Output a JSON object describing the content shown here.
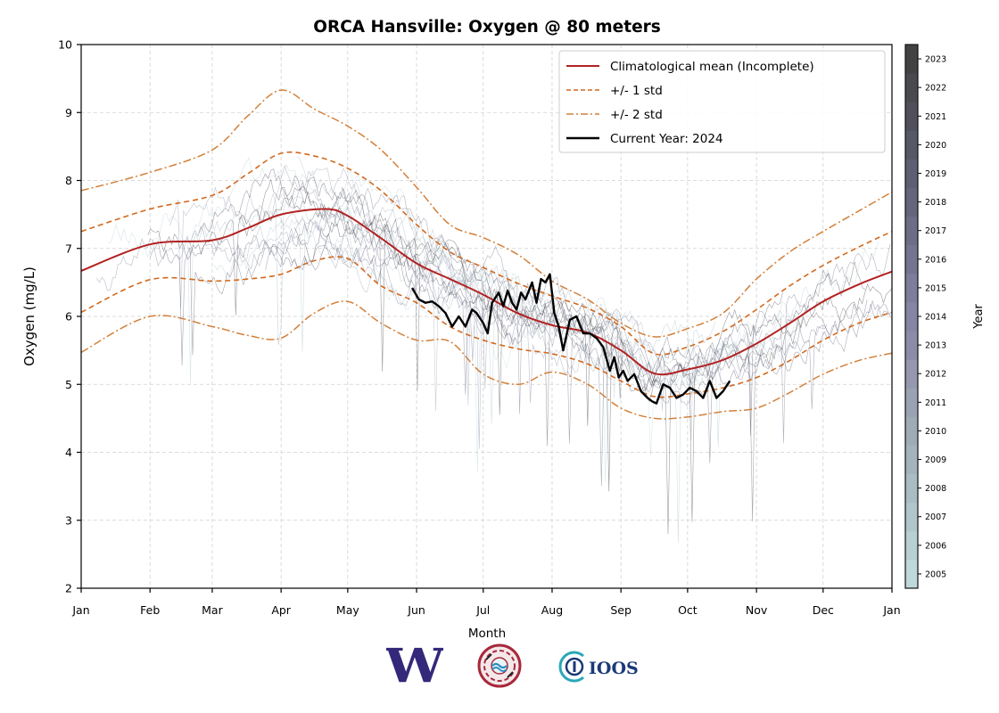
{
  "chart_data": {
    "type": "line",
    "title": "ORCA Hansville: Oxygen @ 80 meters",
    "xlabel": "Month",
    "ylabel": "Oxygen (mg/L)",
    "ylim": [
      2,
      10
    ],
    "xlim_days": [
      0,
      365
    ],
    "yticks": [
      2,
      3,
      4,
      5,
      6,
      7,
      8,
      9,
      10
    ],
    "xticks": [
      {
        "label": "Jan",
        "day": 0
      },
      {
        "label": "Feb",
        "day": 31
      },
      {
        "label": "Mar",
        "day": 59
      },
      {
        "label": "Apr",
        "day": 90
      },
      {
        "label": "May",
        "day": 120
      },
      {
        "label": "Jun",
        "day": 151
      },
      {
        "label": "Jul",
        "day": 181
      },
      {
        "label": "Aug",
        "day": 212
      },
      {
        "label": "Sep",
        "day": 243
      },
      {
        "label": "Oct",
        "day": 273
      },
      {
        "label": "Nov",
        "day": 304
      },
      {
        "label": "Dec",
        "day": 334
      },
      {
        "label": "Jan",
        "day": 365
      }
    ],
    "grid": true,
    "legend_position": "top-right",
    "legend": [
      {
        "label": "Climatological mean (Incomplete)",
        "style": "solid",
        "color": "#b22222"
      },
      {
        "label": "+/- 1 std",
        "style": "dashed",
        "color": "#d2691e"
      },
      {
        "label": "+/- 2 std",
        "style": "dashdot",
        "color": "#d2803a"
      },
      {
        "label": "Current Year: 2024",
        "style": "solid",
        "color": "#000000"
      }
    ],
    "series": [
      {
        "name": "Climatological mean (Incomplete)",
        "days": [
          0,
          31,
          59,
          75,
          90,
          110,
          120,
          135,
          151,
          166,
          181,
          197,
          212,
          228,
          243,
          258,
          273,
          289,
          304,
          319,
          334,
          350,
          365
        ],
        "values": [
          6.67,
          7.06,
          7.12,
          7.3,
          7.5,
          7.58,
          7.48,
          7.15,
          6.78,
          6.55,
          6.32,
          6.04,
          5.87,
          5.76,
          5.5,
          5.16,
          5.22,
          5.36,
          5.6,
          5.9,
          6.22,
          6.47,
          6.66
        ]
      },
      {
        "name": "+1 std",
        "days": [
          0,
          31,
          59,
          75,
          90,
          105,
          120,
          135,
          151,
          166,
          181,
          197,
          212,
          228,
          243,
          258,
          273,
          289,
          304,
          319,
          334,
          350,
          365
        ],
        "values": [
          7.25,
          7.58,
          7.78,
          8.1,
          8.4,
          8.36,
          8.18,
          7.85,
          7.35,
          6.95,
          6.72,
          6.48,
          6.3,
          6.12,
          5.85,
          5.45,
          5.55,
          5.78,
          6.1,
          6.45,
          6.75,
          7.02,
          7.25
        ]
      },
      {
        "name": "-1 std",
        "days": [
          0,
          31,
          59,
          75,
          90,
          105,
          120,
          135,
          151,
          166,
          181,
          197,
          212,
          228,
          243,
          258,
          273,
          289,
          304,
          319,
          334,
          350,
          365
        ],
        "values": [
          6.06,
          6.54,
          6.52,
          6.55,
          6.62,
          6.82,
          6.85,
          6.45,
          6.2,
          5.85,
          5.65,
          5.52,
          5.45,
          5.3,
          5.05,
          4.82,
          4.86,
          4.95,
          5.1,
          5.35,
          5.65,
          5.9,
          6.06
        ]
      },
      {
        "name": "+2 std",
        "days": [
          0,
          31,
          59,
          75,
          90,
          105,
          120,
          135,
          151,
          166,
          181,
          197,
          212,
          228,
          243,
          258,
          273,
          289,
          304,
          319,
          334,
          350,
          365
        ],
        "values": [
          7.85,
          8.12,
          8.45,
          8.95,
          9.33,
          9.05,
          8.8,
          8.45,
          7.9,
          7.35,
          7.16,
          6.9,
          6.52,
          6.25,
          5.9,
          5.7,
          5.82,
          6.05,
          6.55,
          6.95,
          7.25,
          7.55,
          7.83
        ]
      },
      {
        "name": "-2 std",
        "days": [
          0,
          31,
          59,
          75,
          90,
          105,
          120,
          135,
          151,
          166,
          181,
          197,
          212,
          228,
          243,
          258,
          273,
          289,
          304,
          319,
          334,
          350,
          365
        ],
        "values": [
          5.47,
          6.0,
          5.85,
          5.72,
          5.68,
          6.05,
          6.22,
          5.9,
          5.65,
          5.63,
          5.15,
          5.0,
          5.18,
          5.0,
          4.65,
          4.5,
          4.52,
          4.6,
          4.65,
          4.88,
          5.15,
          5.35,
          5.46
        ]
      },
      {
        "name": "Current Year: 2024",
        "days": [
          149,
          152,
          155,
          158,
          161,
          164,
          167,
          170,
          173,
          176,
          178,
          181,
          183,
          185,
          188,
          190,
          192,
          194,
          196,
          198,
          200,
          203,
          205,
          207,
          209,
          211,
          213,
          215,
          217,
          220,
          223,
          226,
          229,
          232,
          235,
          238,
          240,
          242,
          244,
          246,
          249,
          252,
          255,
          257,
          259,
          262,
          265,
          268,
          271,
          274,
          277,
          280,
          283,
          286,
          289,
          292
        ],
        "values": [
          6.42,
          6.25,
          6.2,
          6.22,
          6.15,
          6.05,
          5.85,
          6.0,
          5.85,
          6.1,
          6.05,
          5.9,
          5.75,
          6.2,
          6.35,
          6.15,
          6.38,
          6.2,
          6.1,
          6.35,
          6.25,
          6.5,
          6.2,
          6.55,
          6.5,
          6.62,
          6.05,
          5.85,
          5.5,
          5.95,
          6.0,
          5.75,
          5.75,
          5.68,
          5.55,
          5.2,
          5.4,
          5.1,
          5.2,
          5.05,
          5.15,
          4.9,
          4.8,
          4.75,
          4.72,
          5.0,
          4.95,
          4.8,
          4.85,
          4.95,
          4.9,
          4.8,
          5.05,
          4.8,
          4.9,
          5.05
        ]
      }
    ],
    "colorbar": {
      "label": "Year",
      "ticks": [
        "2005",
        "2006",
        "2007",
        "2008",
        "2009",
        "2010",
        "2011",
        "2012",
        "2013",
        "2014",
        "2015",
        "2016",
        "2017",
        "2018",
        "2019",
        "2020",
        "2021",
        "2022",
        "2023"
      ],
      "colors": [
        "#bfd8d8",
        "#b8d0d2",
        "#b0c6cb",
        "#a9bdc3",
        "#a3b4bc",
        "#9eacb6",
        "#9aa3b2",
        "#9598ae",
        "#8c8ca8",
        "#8585a4",
        "#7d7d9c",
        "#747590",
        "#6d6e86",
        "#65667c",
        "#5e5f72",
        "#575867",
        "#50505b",
        "#494a50",
        "#424244"
      ]
    }
  },
  "logos": {
    "uw_label": "W",
    "ioos_label": "IOOS"
  }
}
